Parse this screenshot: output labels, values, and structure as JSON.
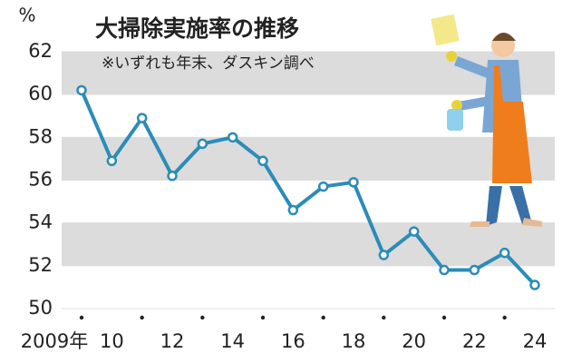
{
  "chart_data": {
    "type": "line",
    "title": "大掃除実施率の推移",
    "subtitle": "※いずれも年末、ダスキン調べ",
    "y_label": "%",
    "categories": [
      "2009年",
      "10",
      null,
      "12",
      null,
      "14",
      null,
      "16",
      null,
      "18",
      null,
      "20",
      null,
      "22",
      null,
      "24"
    ],
    "series": [
      {
        "color": "#2b8cb8",
        "values": [
          60.2,
          56.9,
          58.9,
          56.2,
          57.7,
          58.0,
          56.9,
          54.6,
          55.7,
          55.9,
          52.5,
          53.6,
          51.8,
          51.8,
          52.6,
          51.1
        ]
      }
    ],
    "ylim": [
      50,
      62
    ],
    "yticks": [
      50,
      52,
      54,
      56,
      58,
      60,
      62
    ]
  }
}
